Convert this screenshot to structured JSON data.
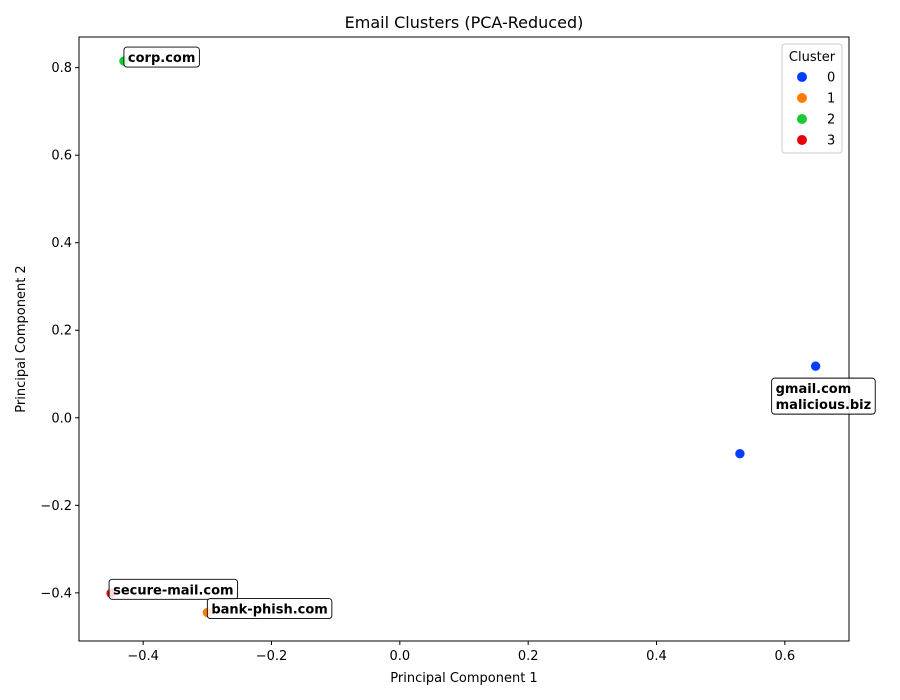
{
  "chart_data": {
    "type": "scatter",
    "title": "Email Clusters (PCA-Reduced)",
    "xlabel": "Principal Component 1",
    "ylabel": "Principal Component 2",
    "xlim": [
      -0.5,
      0.7
    ],
    "ylim": [
      -0.51,
      0.87
    ],
    "xticks": [
      -0.4,
      -0.2,
      0.0,
      0.2,
      0.4,
      0.6
    ],
    "xtick_labels": [
      "−0.4",
      "−0.2",
      "0.0",
      "0.2",
      "0.4",
      "0.6"
    ],
    "yticks": [
      -0.4,
      -0.2,
      0.0,
      0.2,
      0.4,
      0.6,
      0.8
    ],
    "ytick_labels": [
      "−0.4",
      "−0.2",
      "0.0",
      "0.2",
      "0.4",
      "0.6",
      "0.8"
    ],
    "grid": false,
    "legend": {
      "title": "Cluster",
      "placement": "top-right",
      "entries": [
        {
          "label": "0",
          "color": "#023eff"
        },
        {
          "label": "1",
          "color": "#ff7c00"
        },
        {
          "label": "2",
          "color": "#1ac938"
        },
        {
          "label": "3",
          "color": "#e8000b"
        }
      ]
    },
    "points": [
      {
        "x": 0.648,
        "y": 0.118,
        "cluster": "0"
      },
      {
        "x": 0.53,
        "y": -0.082,
        "cluster": "0"
      },
      {
        "x": -0.3,
        "y": -0.445,
        "cluster": "1"
      },
      {
        "x": -0.43,
        "y": 0.815,
        "cluster": "2"
      },
      {
        "x": -0.45,
        "y": -0.401,
        "cluster": "3"
      }
    ],
    "annotations": [
      {
        "lines": [
          "corp.com"
        ],
        "x": -0.43,
        "y": 0.815
      },
      {
        "lines": [
          "gmail.com",
          "malicious.biz"
        ],
        "x": 0.648,
        "y": 0.118
      },
      {
        "lines": [
          "secure-mail.com"
        ],
        "x": -0.45,
        "y": -0.401
      },
      {
        "lines": [
          "bank-phish.com"
        ],
        "x": -0.3,
        "y": -0.445
      }
    ]
  }
}
